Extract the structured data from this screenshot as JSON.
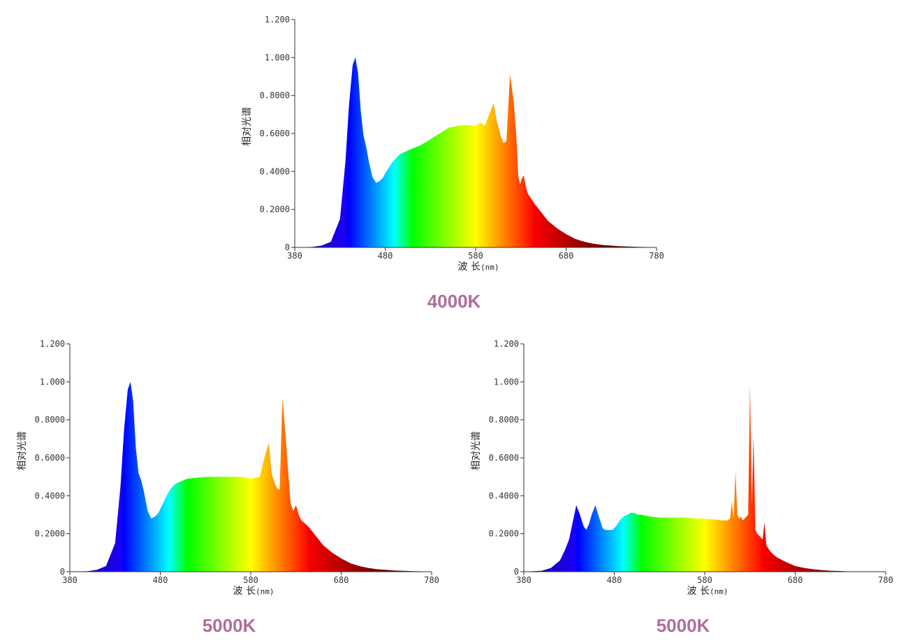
{
  "colors": {
    "caption": "#b06c9c",
    "axis": "#333333"
  },
  "chart_data": [
    {
      "type": "area",
      "title": "4000K",
      "ylabel": "相对光谱",
      "xlabel_main": "波 长",
      "xlabel_unit": "(nm)",
      "xlim": [
        380,
        780
      ],
      "ylim": [
        0,
        1.2
      ],
      "xticks": [
        "380",
        "480",
        "580",
        "680",
        "780"
      ],
      "yticks": [
        "0",
        "0.2000",
        "0.4000",
        "0.6000",
        "0.8000",
        "1.000",
        "1.200"
      ],
      "series": [
        {
          "name": "4000K",
          "x": [
            380,
            400,
            410,
            420,
            430,
            436,
            440,
            444,
            447,
            450,
            453,
            456,
            459,
            462,
            466,
            470,
            474,
            478,
            480,
            484,
            488,
            492,
            496,
            500,
            505,
            510,
            520,
            530,
            540,
            550,
            560,
            570,
            580,
            585,
            590,
            595,
            600,
            603,
            606,
            608,
            611,
            614,
            618,
            622,
            625,
            627,
            629,
            631,
            633,
            636,
            638,
            641,
            645,
            650,
            655,
            660,
            670,
            680,
            690,
            700,
            710,
            720,
            740,
            760,
            780
          ],
          "y": [
            0,
            0.003,
            0.01,
            0.03,
            0.15,
            0.45,
            0.75,
            0.96,
            1.0,
            0.92,
            0.72,
            0.59,
            0.53,
            0.45,
            0.37,
            0.34,
            0.35,
            0.37,
            0.39,
            0.42,
            0.45,
            0.47,
            0.49,
            0.5,
            0.51,
            0.52,
            0.54,
            0.57,
            0.6,
            0.63,
            0.64,
            0.645,
            0.64,
            0.66,
            0.64,
            0.7,
            0.76,
            0.67,
            0.62,
            0.58,
            0.55,
            0.56,
            0.91,
            0.77,
            0.58,
            0.38,
            0.33,
            0.36,
            0.38,
            0.31,
            0.28,
            0.26,
            0.23,
            0.2,
            0.17,
            0.14,
            0.1,
            0.07,
            0.045,
            0.03,
            0.02,
            0.013,
            0.006,
            0.003,
            0.001
          ]
        }
      ]
    },
    {
      "type": "area",
      "title": "5000K",
      "ylabel": "相对光谱",
      "xlabel_main": "波 长",
      "xlabel_unit": "(nm)",
      "xlim": [
        380,
        780
      ],
      "ylim": [
        0,
        1.2
      ],
      "xticks": [
        "380",
        "480",
        "580",
        "680",
        "780"
      ],
      "yticks": [
        "0",
        "0.2000",
        "0.4000",
        "0.6000",
        "0.8000",
        "1.000",
        "1.200"
      ],
      "series": [
        {
          "name": "5000K",
          "x": [
            380,
            400,
            410,
            420,
            430,
            436,
            440,
            444,
            447,
            450,
            453,
            456,
            459,
            462,
            466,
            470,
            474,
            478,
            480,
            484,
            488,
            492,
            496,
            500,
            505,
            510,
            520,
            530,
            540,
            550,
            560,
            570,
            580,
            590,
            595,
            600,
            603,
            606,
            609,
            612,
            615,
            618,
            621,
            624,
            627,
            630,
            633,
            636,
            641,
            645,
            650,
            655,
            660,
            670,
            680,
            690,
            700,
            710,
            720,
            740,
            760,
            780
          ],
          "y": [
            0,
            0.003,
            0.01,
            0.03,
            0.15,
            0.45,
            0.75,
            0.96,
            1.0,
            0.9,
            0.65,
            0.52,
            0.48,
            0.42,
            0.32,
            0.28,
            0.29,
            0.31,
            0.33,
            0.37,
            0.41,
            0.44,
            0.46,
            0.47,
            0.48,
            0.49,
            0.495,
            0.5,
            0.5,
            0.5,
            0.5,
            0.5,
            0.49,
            0.5,
            0.6,
            0.68,
            0.52,
            0.47,
            0.44,
            0.43,
            0.91,
            0.75,
            0.55,
            0.36,
            0.32,
            0.35,
            0.3,
            0.27,
            0.25,
            0.23,
            0.2,
            0.17,
            0.14,
            0.1,
            0.07,
            0.045,
            0.03,
            0.02,
            0.013,
            0.006,
            0.003,
            0.001
          ]
        }
      ]
    },
    {
      "type": "area",
      "title": "5000K",
      "ylabel": "相对光谱",
      "xlabel_main": "波 长",
      "xlabel_unit": "(nm)",
      "xlim": [
        380,
        780
      ],
      "ylim": [
        0,
        1.2
      ],
      "xticks": [
        "380",
        "480",
        "580",
        "680",
        "780"
      ],
      "yticks": [
        "0",
        "0.2000",
        "0.4000",
        "0.6000",
        "0.8000",
        "1.000",
        "1.200"
      ],
      "series": [
        {
          "name": "5000K",
          "x": [
            380,
            400,
            410,
            420,
            425,
            430,
            434,
            438,
            442,
            446,
            449,
            452,
            455,
            459,
            463,
            467,
            470,
            474,
            478,
            482,
            486,
            490,
            494,
            498,
            502,
            506,
            510,
            520,
            530,
            540,
            550,
            560,
            570,
            580,
            590,
            600,
            605,
            608,
            610,
            612,
            614,
            616,
            618,
            620,
            622,
            624,
            626,
            628,
            630,
            632,
            634,
            636,
            638,
            640,
            642,
            644,
            646,
            648,
            652,
            656,
            660,
            670,
            680,
            690,
            700,
            710,
            720,
            740,
            760,
            780
          ],
          "y": [
            0,
            0.005,
            0.02,
            0.06,
            0.11,
            0.17,
            0.26,
            0.35,
            0.3,
            0.24,
            0.22,
            0.25,
            0.3,
            0.35,
            0.29,
            0.23,
            0.22,
            0.22,
            0.22,
            0.24,
            0.27,
            0.29,
            0.3,
            0.31,
            0.31,
            0.3,
            0.3,
            0.29,
            0.285,
            0.285,
            0.285,
            0.285,
            0.28,
            0.28,
            0.275,
            0.27,
            0.27,
            0.28,
            0.37,
            0.28,
            0.53,
            0.3,
            0.28,
            0.29,
            0.27,
            0.28,
            0.29,
            0.3,
            0.98,
            0.35,
            0.71,
            0.22,
            0.2,
            0.19,
            0.18,
            0.17,
            0.26,
            0.14,
            0.11,
            0.09,
            0.075,
            0.05,
            0.03,
            0.02,
            0.013,
            0.008,
            0.005,
            0.002,
            0.001,
            0.001
          ]
        }
      ]
    }
  ]
}
